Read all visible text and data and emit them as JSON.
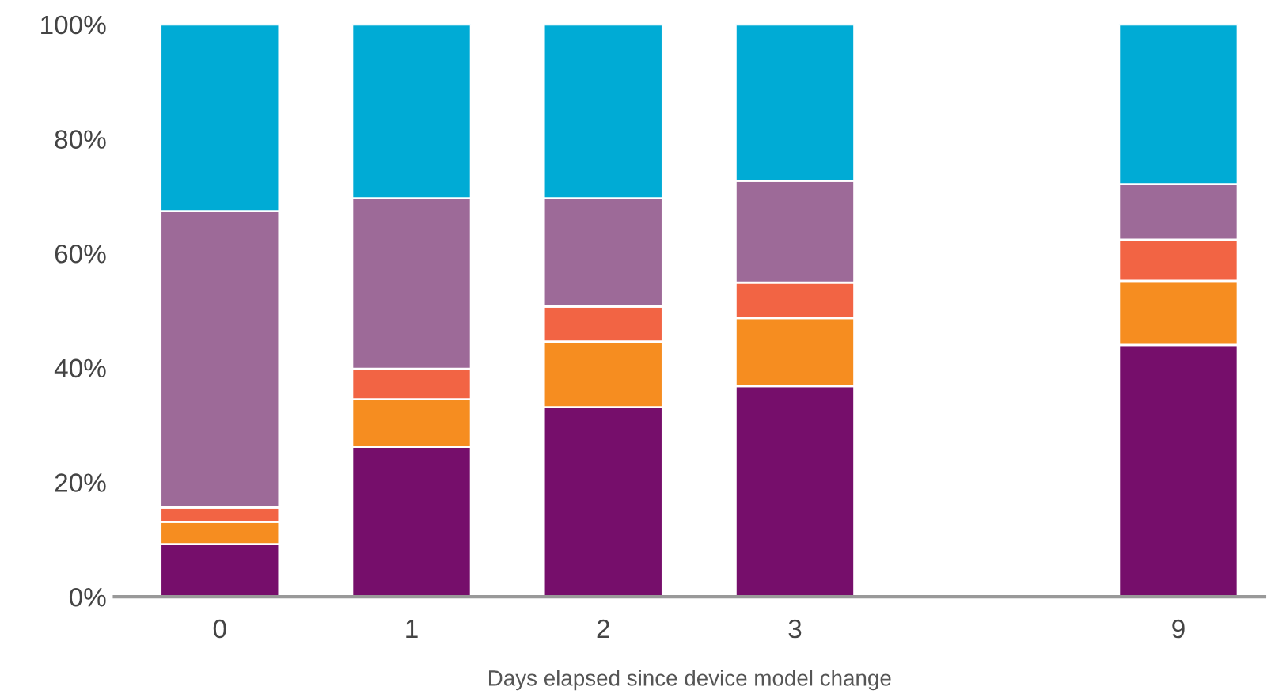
{
  "chart_data": {
    "type": "bar",
    "stacked": true,
    "xlabel": "Days elapsed since device model change",
    "categories": [
      "0",
      "1",
      "2",
      "3",
      null,
      "9"
    ],
    "series": [
      {
        "color": "#760e6b",
        "values": [
          9.2,
          26.2,
          33.1,
          36.8,
          null,
          44.0
        ]
      },
      {
        "color": "#f68d20",
        "values": [
          3.9,
          8.3,
          11.5,
          11.9,
          null,
          11.2
        ]
      },
      {
        "color": "#f26444",
        "values": [
          2.5,
          5.3,
          6.1,
          6.2,
          null,
          7.2
        ]
      },
      {
        "color": "#9d6a98",
        "values": [
          51.8,
          29.8,
          18.9,
          17.8,
          null,
          9.7
        ]
      },
      {
        "color": "#00abd5",
        "values": [
          32.6,
          30.4,
          30.4,
          27.3,
          null,
          27.9
        ]
      }
    ],
    "ylim": [
      0,
      100
    ],
    "yticks": [
      {
        "value": 0,
        "label": "0%"
      },
      {
        "value": 20,
        "label": "20%"
      },
      {
        "value": 40,
        "label": "40%"
      },
      {
        "value": 60,
        "label": "60%"
      },
      {
        "value": 80,
        "label": "80%"
      },
      {
        "value": 100,
        "label": "100%"
      }
    ],
    "grid": false,
    "legend": false
  }
}
